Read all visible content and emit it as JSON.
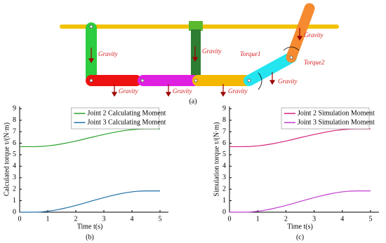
{
  "diagram": {
    "labels": [
      "Gravity",
      "Gravity",
      "Gravity",
      "Gravity",
      "Gravity",
      "Gravity",
      "Gravity",
      "Torque1",
      "Torque2"
    ],
    "caption": "(a)"
  },
  "chart_data": [
    {
      "type": "line",
      "caption": "(b)",
      "x_label": "Time  t(s)",
      "y_label": "Calculated torque  τ/(N·m)",
      "x": [
        0,
        0.25,
        0.5,
        0.75,
        1,
        1.25,
        1.5,
        1.75,
        2,
        2.25,
        2.5,
        2.75,
        3,
        3.25,
        3.5,
        3.75,
        4,
        4.25,
        4.5,
        4.75,
        5
      ],
      "series": [
        {
          "name": "Joint 2 Calculating Moment",
          "color": "#2ca02c",
          "values": [
            5.7,
            5.7,
            5.7,
            5.72,
            5.77,
            5.84,
            5.94,
            6.06,
            6.19,
            6.33,
            6.48,
            6.62,
            6.76,
            6.89,
            7.01,
            7.11,
            7.18,
            7.23,
            7.25,
            7.25,
            7.25
          ]
        },
        {
          "name": "Joint 3 Calculating Moment",
          "color": "#1f6fa8",
          "values": [
            0,
            0,
            0,
            0.02,
            0.08,
            0.17,
            0.29,
            0.43,
            0.58,
            0.75,
            0.93,
            1.1,
            1.27,
            1.42,
            1.56,
            1.68,
            1.77,
            1.83,
            1.85,
            1.85,
            1.85
          ]
        }
      ],
      "xlim": [
        0,
        5.3
      ],
      "xticks": [
        0,
        1,
        2,
        3,
        4,
        5
      ],
      "ylim": [
        0,
        9.2
      ],
      "yticks": [
        0,
        1,
        2,
        3,
        4,
        5,
        6,
        7,
        8,
        9
      ],
      "legend": "upper center"
    },
    {
      "type": "line",
      "caption": "(c)",
      "x_label": "Time  t(s)",
      "y_label": "Simulation torque  τ/(N·m)",
      "x": [
        0,
        0.25,
        0.5,
        0.75,
        1,
        1.25,
        1.5,
        1.75,
        2,
        2.25,
        2.5,
        2.75,
        3,
        3.25,
        3.5,
        3.75,
        4,
        4.25,
        4.5,
        4.75,
        5
      ],
      "series": [
        {
          "name": "Joint 2 Simulation Moment",
          "color": "#d4237a",
          "values": [
            5.7,
            5.7,
            5.7,
            5.72,
            5.77,
            5.84,
            5.94,
            6.06,
            6.19,
            6.33,
            6.48,
            6.62,
            6.76,
            6.89,
            7.01,
            7.11,
            7.18,
            7.23,
            7.25,
            7.25,
            7.25
          ]
        },
        {
          "name": "Joint 3 Simulation Moment",
          "color": "#c03cd0",
          "values": [
            0,
            0,
            0,
            0.02,
            0.08,
            0.17,
            0.29,
            0.43,
            0.58,
            0.75,
            0.93,
            1.1,
            1.27,
            1.42,
            1.56,
            1.68,
            1.77,
            1.83,
            1.85,
            1.85,
            1.85
          ]
        }
      ],
      "xlim": [
        0,
        5.3
      ],
      "xticks": [
        0,
        1,
        2,
        3,
        4,
        5
      ],
      "ylim": [
        0,
        9.2
      ],
      "yticks": [
        0,
        1,
        2,
        3,
        4,
        5,
        6,
        7,
        8,
        9
      ],
      "legend": "upper center"
    }
  ]
}
